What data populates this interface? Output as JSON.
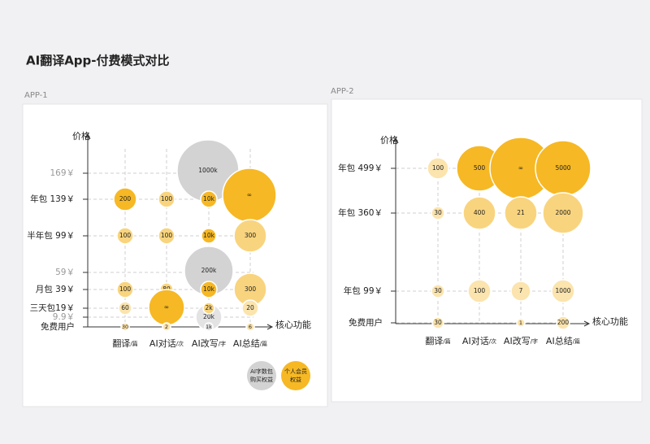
{
  "title": "AI翻译App-付费模式对比",
  "chart_data": [
    {
      "type": "bubble",
      "label": "APP-1",
      "y_label": "价格",
      "x_label": "核心功能",
      "columns": [
        {
          "name": "翻译",
          "unit": "/篇"
        },
        {
          "name": "AI对话",
          "unit": "/次"
        },
        {
          "name": "AI改写",
          "unit": "/字"
        },
        {
          "name": "AI总结",
          "unit": "/篇"
        }
      ],
      "rows": [
        {
          "label": "169￥",
          "color": "#999999"
        },
        {
          "label": "年包 139￥",
          "color": "#222222"
        },
        {
          "label": "半年包 99￥",
          "color": "#222222"
        },
        {
          "label": "59￥",
          "color": "#999999"
        },
        {
          "label": "月包 39￥",
          "color": "#222222"
        },
        {
          "label": "三天包19￥",
          "color": "#222222"
        },
        {
          "label": "9.9￥",
          "color": "#999999"
        },
        {
          "label": "免费用户",
          "color": "#222222"
        }
      ],
      "bubbles": [
        {
          "col": 2,
          "row": 0,
          "label": "1000k",
          "color": "#d3d3d3"
        },
        {
          "col": 3,
          "row": 1,
          "label": "∞",
          "color": "#f6b824"
        },
        {
          "col": 0,
          "row": 1,
          "label": "200",
          "color": "#f6b824"
        },
        {
          "col": 1,
          "row": 1,
          "label": "100",
          "color": "#f9d47e"
        },
        {
          "col": 2,
          "row": 1,
          "label": "10k",
          "color": "#f6b824"
        },
        {
          "col": 0,
          "row": 2,
          "label": "100",
          "color": "#f9d47e"
        },
        {
          "col": 1,
          "row": 2,
          "label": "100",
          "color": "#f9d47e"
        },
        {
          "col": 2,
          "row": 2,
          "label": "10k",
          "color": "#f6b824"
        },
        {
          "col": 3,
          "row": 2,
          "label": "300",
          "color": "#f9d47e"
        },
        {
          "col": 2,
          "row": 3,
          "label": "200k",
          "color": "#d3d3d3"
        },
        {
          "col": 0,
          "row": 4,
          "label": "100",
          "color": "#f9d47e"
        },
        {
          "col": 1,
          "row": 4,
          "label": "80",
          "color": "#f9d47e"
        },
        {
          "col": 2,
          "row": 4,
          "label": "10k",
          "color": "#f6b824"
        },
        {
          "col": 3,
          "row": 4,
          "label": "300",
          "color": "#f9d47e"
        },
        {
          "col": 0,
          "row": 5,
          "label": "60",
          "color": "#fbe4ad"
        },
        {
          "col": 1,
          "row": 5,
          "label": "∞",
          "color": "#f6b824"
        },
        {
          "col": 2,
          "row": 6,
          "label": "20k",
          "color": "#e3e3e3"
        },
        {
          "col": 2,
          "row": 5,
          "label": "2k",
          "color": "#f9d47e"
        },
        {
          "col": 3,
          "row": 5,
          "label": "20",
          "color": "#fbe4ad"
        },
        {
          "col": 0,
          "row": 7,
          "label": "30",
          "color": "#fbe4ad"
        },
        {
          "col": 1,
          "row": 7,
          "label": "2",
          "color": "#fbe4ad"
        },
        {
          "col": 2,
          "row": 7,
          "label": "1k",
          "color": "#e3e3e3"
        },
        {
          "col": 3,
          "row": 7,
          "label": "6",
          "color": "#fbe4ad"
        }
      ],
      "legend": [
        {
          "lines": [
            "AI字数包",
            "购买权益"
          ],
          "color": "#d3d3d3"
        },
        {
          "lines": [
            "个人会员",
            "权益"
          ],
          "color": "#f6b824"
        }
      ]
    },
    {
      "type": "bubble",
      "label": "APP-2",
      "y_label": "价格",
      "x_label": "核心功能",
      "columns": [
        {
          "name": "翻译",
          "unit": "/篇"
        },
        {
          "name": "AI对话",
          "unit": "/次"
        },
        {
          "name": "AI改写",
          "unit": "/字"
        },
        {
          "name": "AI总结",
          "unit": "/篇"
        }
      ],
      "rows": [
        {
          "label": "年包 499￥",
          "color": "#222222"
        },
        {
          "label": "年包 360￥",
          "color": "#222222"
        },
        {
          "label": "年包 99￥",
          "color": "#222222"
        },
        {
          "label": "免费用户",
          "color": "#222222"
        }
      ],
      "bubbles": [
        {
          "col": 0,
          "row": 0,
          "label": "100",
          "color": "#fbe4ad"
        },
        {
          "col": 1,
          "row": 0,
          "label": "500",
          "color": "#f6b824"
        },
        {
          "col": 2,
          "row": 0,
          "label": "∞",
          "color": "#f6b824"
        },
        {
          "col": 3,
          "row": 0,
          "label": "5000",
          "color": "#f6b824"
        },
        {
          "col": 0,
          "row": 1,
          "label": "30",
          "color": "#fbe4ad"
        },
        {
          "col": 1,
          "row": 1,
          "label": "400",
          "color": "#f9d47e"
        },
        {
          "col": 2,
          "row": 1,
          "label": "21",
          "color": "#f9d47e"
        },
        {
          "col": 3,
          "row": 1,
          "label": "2000",
          "color": "#f9d47e"
        },
        {
          "col": 0,
          "row": 2,
          "label": "30",
          "color": "#fbe4ad"
        },
        {
          "col": 1,
          "row": 2,
          "label": "100",
          "color": "#fbe4ad"
        },
        {
          "col": 2,
          "row": 2,
          "label": "7",
          "color": "#fbe4ad"
        },
        {
          "col": 3,
          "row": 2,
          "label": "1000",
          "color": "#fbe4ad"
        },
        {
          "col": 0,
          "row": 3,
          "label": "30",
          "color": "#fbe4ad"
        },
        {
          "col": 2,
          "row": 3,
          "label": "1",
          "color": "#fbe4ad"
        },
        {
          "col": 3,
          "row": 3,
          "label": "200",
          "color": "#fbe4ad"
        }
      ]
    }
  ]
}
